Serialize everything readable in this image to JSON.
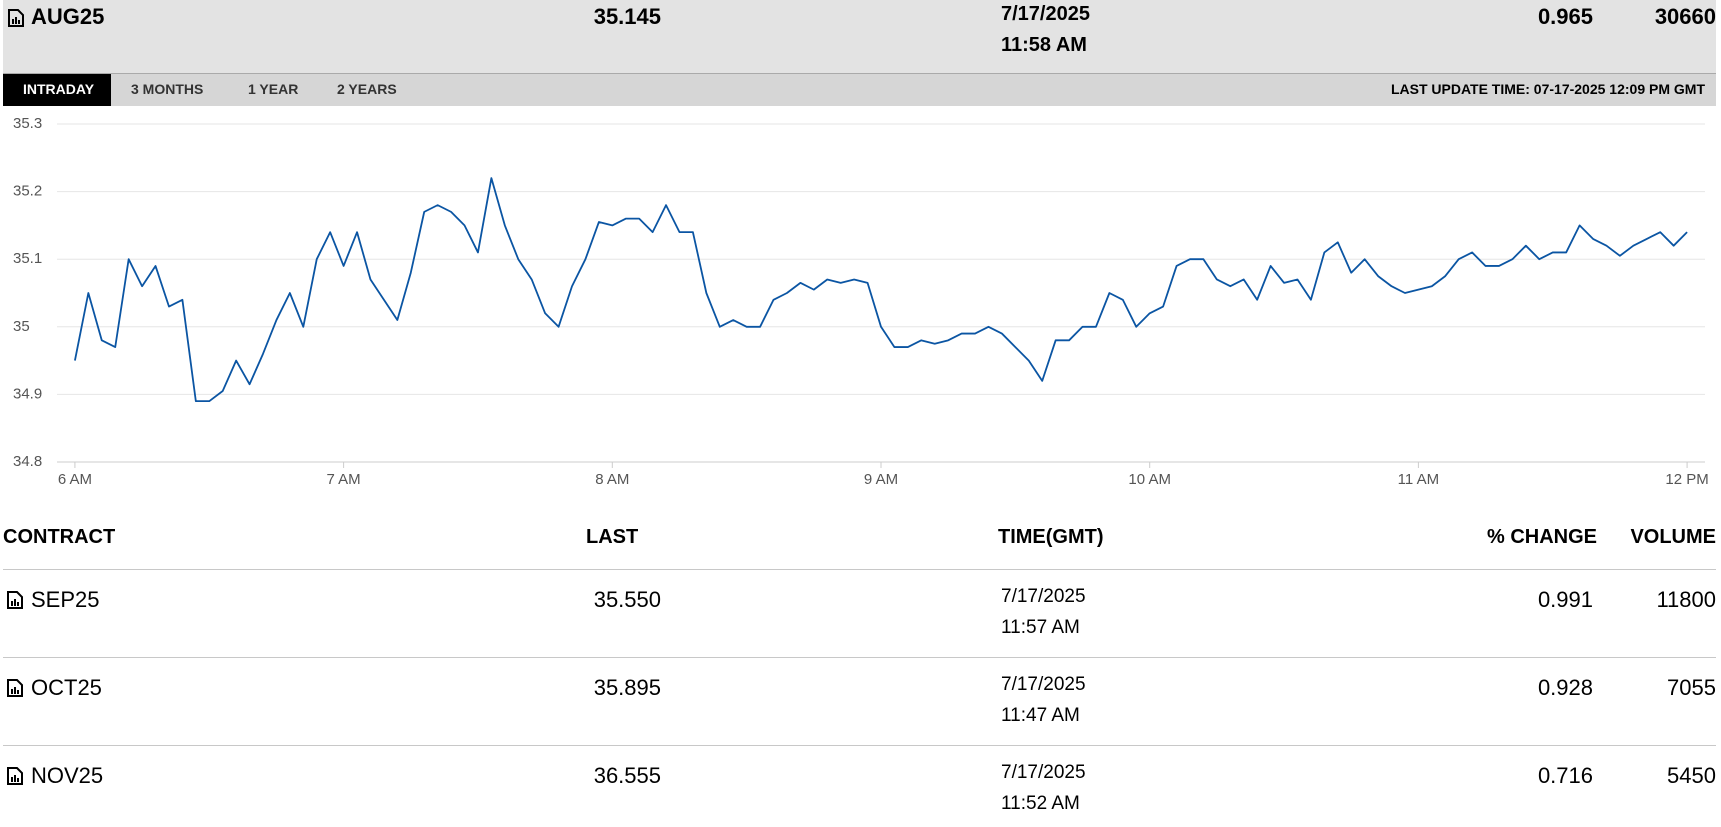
{
  "header": {
    "symbol": "AUG25",
    "last": "35.145",
    "date": "7/17/2025",
    "time": "11:58 AM",
    "change": "0.965",
    "volume": "30660"
  },
  "tabs": [
    "INTRADAY",
    "3 MONTHS",
    "1 YEAR",
    "2 YEARS"
  ],
  "last_update": "LAST UPDATE TIME: 07-17-2025 12:09 PM GMT",
  "chart_data": {
    "type": "line",
    "color": "#0b55a3",
    "grid": true,
    "x": [
      360,
      363,
      366,
      369,
      372,
      375,
      378,
      381,
      384,
      387,
      390,
      393,
      396,
      399,
      402,
      405,
      408,
      411,
      414,
      417,
      420,
      423,
      426,
      429,
      432,
      435,
      438,
      441,
      444,
      447,
      450,
      453,
      456,
      459,
      462,
      465,
      468,
      471,
      474,
      477,
      480,
      483,
      486,
      489,
      492,
      495,
      498,
      501,
      504,
      507,
      510,
      513,
      516,
      519,
      522,
      525,
      528,
      531,
      534,
      537,
      540,
      543,
      546,
      549,
      552,
      555,
      558,
      561,
      564,
      567,
      570,
      573,
      576,
      579,
      582,
      585,
      588,
      591,
      594,
      597,
      600,
      603,
      606,
      609,
      612,
      615,
      618,
      621,
      624,
      627,
      630,
      633,
      636,
      639,
      642,
      645,
      648,
      651,
      654,
      657,
      660,
      663,
      666,
      669,
      672,
      675,
      678,
      681,
      684,
      687,
      690,
      693,
      696,
      699,
      702,
      705,
      708,
      711,
      714,
      717,
      720
    ],
    "values": [
      34.95,
      35.05,
      34.98,
      34.97,
      35.1,
      35.06,
      35.09,
      35.03,
      35.04,
      34.89,
      34.89,
      34.905,
      34.95,
      34.915,
      34.96,
      35.01,
      35.05,
      35.0,
      35.1,
      35.14,
      35.09,
      35.14,
      35.07,
      35.04,
      35.01,
      35.08,
      35.17,
      35.18,
      35.17,
      35.15,
      35.11,
      35.22,
      35.15,
      35.1,
      35.07,
      35.02,
      35.0,
      35.06,
      35.1,
      35.155,
      35.15,
      35.16,
      35.16,
      35.14,
      35.18,
      35.14,
      35.14,
      35.05,
      35.0,
      35.01,
      35.0,
      35.0,
      35.04,
      35.05,
      35.065,
      35.055,
      35.07,
      35.065,
      35.07,
      35.065,
      35.0,
      34.97,
      34.97,
      34.98,
      34.975,
      34.98,
      34.99,
      34.99,
      35.0,
      34.99,
      34.97,
      34.95,
      34.92,
      34.98,
      34.98,
      35.0,
      35.0,
      35.05,
      35.04,
      35.0,
      35.02,
      35.03,
      35.09,
      35.1,
      35.1,
      35.07,
      35.06,
      35.07,
      35.04,
      35.09,
      35.065,
      35.07,
      35.04,
      35.11,
      35.125,
      35.08,
      35.1,
      35.075,
      35.06,
      35.05,
      35.055,
      35.06,
      35.075,
      35.1,
      35.11,
      35.09,
      35.09,
      35.1,
      35.12,
      35.1,
      35.11,
      35.11,
      35.15,
      35.13,
      35.12,
      35.105,
      35.12,
      35.13,
      35.14,
      35.12,
      35.14
    ],
    "xlim": [
      356,
      724
    ],
    "xticks": [
      {
        "value": 360,
        "label": "6 AM"
      },
      {
        "value": 420,
        "label": "7 AM"
      },
      {
        "value": 480,
        "label": "8 AM"
      },
      {
        "value": 540,
        "label": "9 AM"
      },
      {
        "value": 600,
        "label": "10 AM"
      },
      {
        "value": 660,
        "label": "11 AM"
      },
      {
        "value": 720,
        "label": "12 PM"
      }
    ],
    "ylim": [
      34.8,
      35.3
    ],
    "yticks": [
      34.8,
      34.9,
      35,
      35.1,
      35.2,
      35.3
    ]
  },
  "table": {
    "columns": [
      "CONTRACT",
      "LAST",
      "TIME(GMT)",
      "% CHANGE",
      "VOLUME"
    ],
    "rows": [
      [
        "SEP25",
        "35.550",
        "7/17/2025",
        "11:57 AM",
        "0.991",
        "11800"
      ],
      [
        "OCT25",
        "35.895",
        "7/17/2025",
        "11:47 AM",
        "0.928",
        "7055"
      ],
      [
        "NOV25",
        "36.555",
        "7/17/2025",
        "11:52 AM",
        "0.716",
        "5450"
      ]
    ]
  }
}
